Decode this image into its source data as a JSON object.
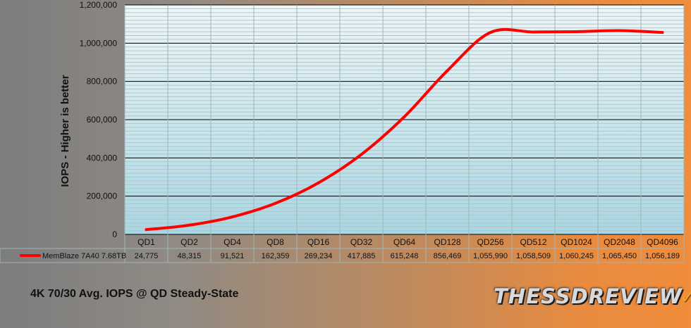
{
  "caption": "4K 70/30 Avg. IOPS @ QD Steady-State",
  "logo": {
    "text": "THESSDREVIEW",
    "mark": "✓"
  },
  "colors": {
    "line": "#ff0000",
    "plot_top": "#eef6f8",
    "plot_bottom": "#a7d7e3",
    "gridline": "#000000"
  },
  "chart_data": {
    "type": "line",
    "title": "",
    "ylabel": "IOPS - Higher is better",
    "xlabel": "",
    "categories": [
      "QD1",
      "QD2",
      "QD4",
      "QD8",
      "QD16",
      "QD32",
      "QD64",
      "QD128",
      "QD256",
      "QD512",
      "QD1024",
      "QD2048",
      "QD4096"
    ],
    "ylim": [
      0,
      1200000
    ],
    "yticks": [
      0,
      200000,
      400000,
      600000,
      800000,
      1000000,
      1200000
    ],
    "ytick_labels": [
      "0",
      "200,000",
      "400,000",
      "600,000",
      "800,000",
      "1,000,000",
      "1,200,000"
    ],
    "grid": true,
    "legend": "data-table-left",
    "series": [
      {
        "name": "MemBlaze 7A40 7.68TB",
        "values": [
          24775,
          48315,
          91521,
          162359,
          269234,
          417885,
          615248,
          856469,
          1055990,
          1058509,
          1060245,
          1065450,
          1056189
        ],
        "labels": [
          "24,775",
          "48,315",
          "91,521",
          "162,359",
          "269,234",
          "417,885",
          "615,248",
          "856,469",
          "1,055,990",
          "1,058,509",
          "1,060,245",
          "1,065,450",
          "1,056,189"
        ]
      }
    ]
  }
}
